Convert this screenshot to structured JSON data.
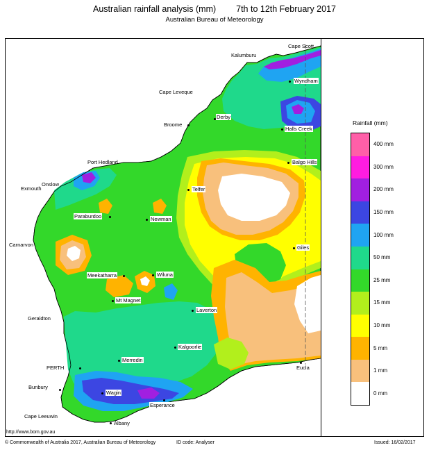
{
  "header": {
    "title": "Australian rainfall analysis (mm)",
    "period": "7th to 12th February 2017",
    "subtitle": "Australian Bureau of Meteorology"
  },
  "legend": {
    "title": "Rainfall (mm)",
    "bands": [
      {
        "label": "400 mm",
        "color": "#ff5fa8"
      },
      {
        "label": "300 mm",
        "color": "#ff1ce0"
      },
      {
        "label": "200 mm",
        "color": "#a11fe0"
      },
      {
        "label": "150 mm",
        "color": "#3c46e2"
      },
      {
        "label": "100 mm",
        "color": "#1fa4f2"
      },
      {
        "label": "50 mm",
        "color": "#1fd98b"
      },
      {
        "label": "25 mm",
        "color": "#33d82a"
      },
      {
        "label": "15 mm",
        "color": "#b2ef1c"
      },
      {
        "label": "10 mm",
        "color": "#ffff00"
      },
      {
        "label": "5 mm",
        "color": "#ffb300"
      },
      {
        "label": "1 mm",
        "color": "#f8c07c"
      },
      {
        "label": "0 mm",
        "color": "#ffffff"
      }
    ]
  },
  "places": [
    {
      "name": "Cape Scott",
      "boxed": false
    },
    {
      "name": "Kalumburu",
      "boxed": false
    },
    {
      "name": "Wyndham",
      "boxed": true
    },
    {
      "name": "Cape Leveque",
      "boxed": false
    },
    {
      "name": "Derby",
      "boxed": true
    },
    {
      "name": "Broome",
      "boxed": false
    },
    {
      "name": "Halls Creek",
      "boxed": true
    },
    {
      "name": "Port Hedland",
      "boxed": false
    },
    {
      "name": "Balgo Hills",
      "boxed": true
    },
    {
      "name": "Onslow",
      "boxed": false
    },
    {
      "name": "Exmouth",
      "boxed": false
    },
    {
      "name": "Telfer",
      "boxed": true
    },
    {
      "name": "Paraburdoo",
      "boxed": true
    },
    {
      "name": "Newman",
      "boxed": true
    },
    {
      "name": "Carnarvon",
      "boxed": false
    },
    {
      "name": "Giles",
      "boxed": true
    },
    {
      "name": "Meekatharra",
      "boxed": true
    },
    {
      "name": "Wiluna",
      "boxed": true
    },
    {
      "name": "Mt Magnet",
      "boxed": true
    },
    {
      "name": "Laverton",
      "boxed": true
    },
    {
      "name": "Geraldton",
      "boxed": false
    },
    {
      "name": "Kalgoorlie",
      "boxed": true
    },
    {
      "name": "Merredin",
      "boxed": true
    },
    {
      "name": "PERTH",
      "boxed": false
    },
    {
      "name": "Eucla",
      "boxed": true
    },
    {
      "name": "Bunbury",
      "boxed": false
    },
    {
      "name": "Wagin",
      "boxed": true
    },
    {
      "name": "Esperance",
      "boxed": true
    },
    {
      "name": "Cape Leeuwin",
      "boxed": false
    },
    {
      "name": "Albany",
      "boxed": false
    }
  ],
  "footer": {
    "website": "http://www.bom.gov.au",
    "copyright": "© Commonwealth of Australia 2017, Australian Bureau of Meteorology",
    "id_code": "ID code: Analyser",
    "issued": "Issued: 16/02/2017"
  }
}
